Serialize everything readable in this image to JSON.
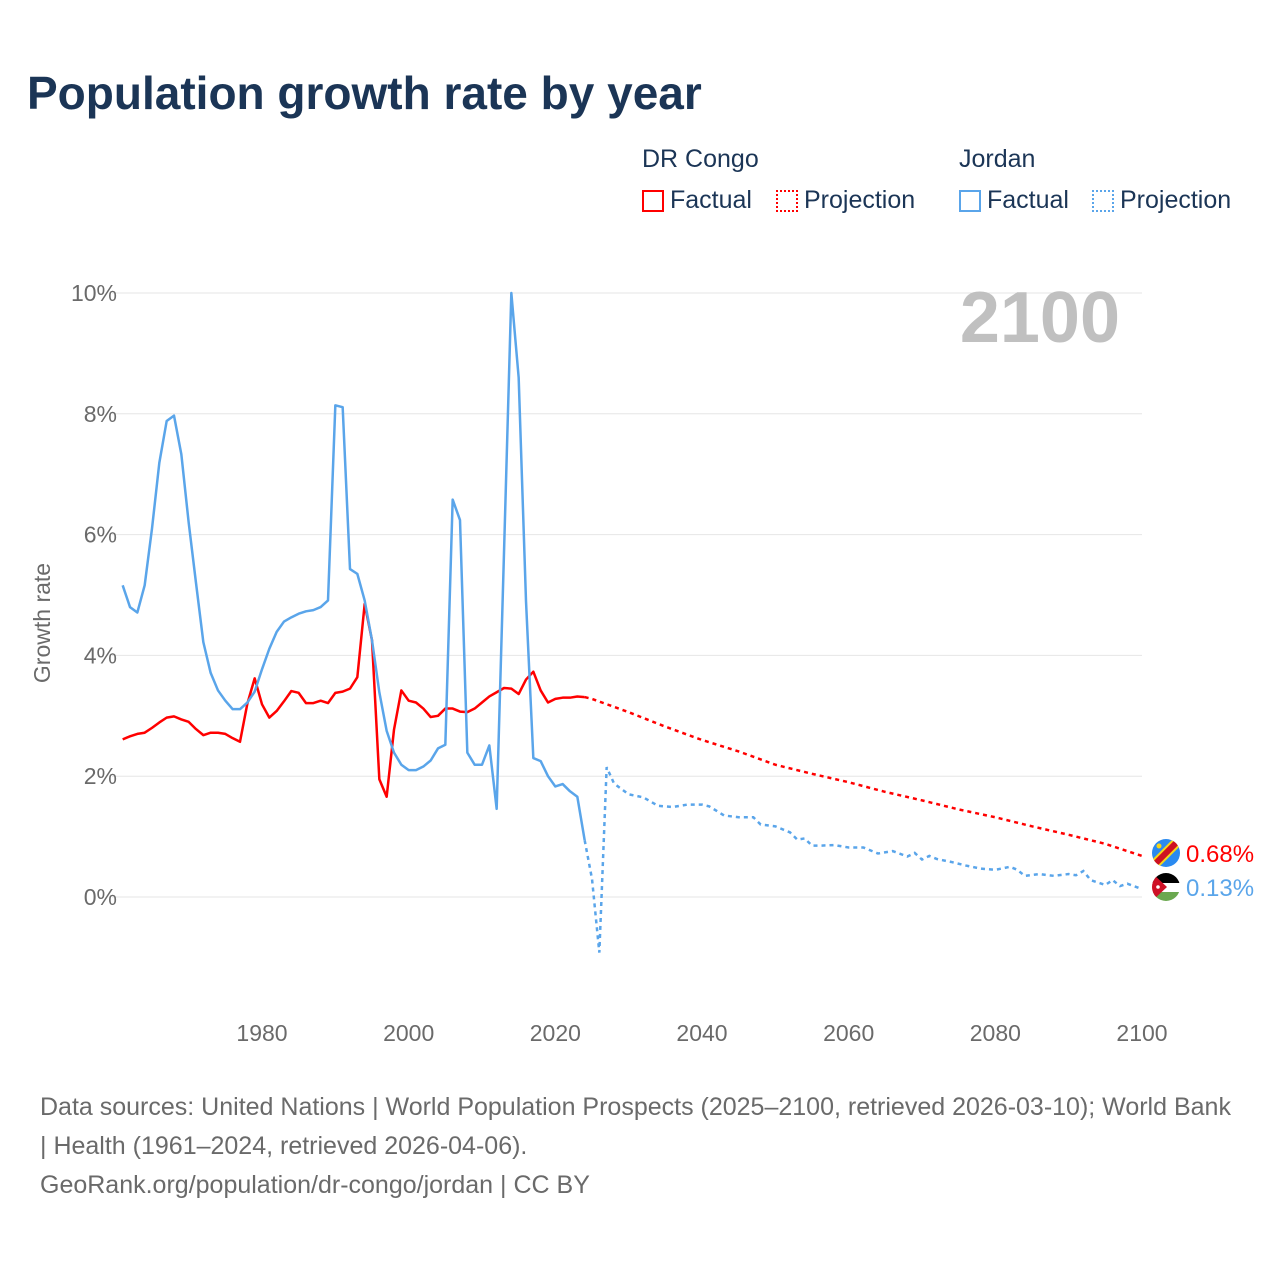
{
  "chart_data": {
    "type": "line",
    "title": "Population growth rate by year",
    "ylabel": "Growth rate",
    "xlabel": "",
    "xlim": [
      1961,
      2100
    ],
    "ylim": [
      -1.5,
      10.5
    ],
    "x_ticks": [
      1980,
      2000,
      2020,
      2040,
      2060,
      2080,
      2100
    ],
    "x_tick_labels": [
      "1980",
      "2000",
      "2020",
      "2040",
      "2060",
      "2080",
      "2100"
    ],
    "y_ticks": [
      0,
      2,
      4,
      6,
      8,
      10
    ],
    "y_tick_labels": [
      "0%",
      "2%",
      "4%",
      "6%",
      "8%",
      "10%"
    ],
    "grid": true,
    "year_watermark": "2100",
    "legend": {
      "placement": "top-right",
      "groups": [
        {
          "name": "DR Congo",
          "factual": "Factual",
          "projection": "Projection"
        },
        {
          "name": "Jordan",
          "factual": "Factual",
          "projection": "Projection"
        }
      ]
    },
    "series": [
      {
        "name": "DR Congo",
        "color": "#ff0000",
        "end_label": "0.68%",
        "flag": "dr-congo-flag",
        "factual": {
          "start_year": 1961,
          "values": [
            2.61,
            2.66,
            2.7,
            2.72,
            2.8,
            2.89,
            2.97,
            2.99,
            2.94,
            2.9,
            2.78,
            2.68,
            2.72,
            2.72,
            2.7,
            2.63,
            2.57,
            3.2,
            3.62,
            3.19,
            2.97,
            3.08,
            3.24,
            3.41,
            3.38,
            3.21,
            3.21,
            3.25,
            3.21,
            3.38,
            3.4,
            3.45,
            3.64,
            4.85,
            4.25,
            1.95,
            1.66,
            2.77,
            3.42,
            3.25,
            3.22,
            3.12,
            2.98,
            3.0,
            3.12,
            3.12,
            3.07,
            3.06,
            3.12,
            3.22,
            3.32,
            3.39,
            3.46,
            3.45,
            3.36,
            3.6,
            3.73,
            3.42,
            3.22,
            3.28,
            3.3,
            3.3,
            3.32,
            3.31
          ]
        },
        "projection": {
          "x": [
            2024,
            2025,
            2030,
            2035,
            2040,
            2045,
            2050,
            2055,
            2060,
            2065,
            2070,
            2075,
            2080,
            2085,
            2090,
            2095,
            2100
          ],
          "values": [
            3.31,
            3.28,
            3.06,
            2.82,
            2.6,
            2.41,
            2.19,
            2.04,
            1.9,
            1.74,
            1.6,
            1.45,
            1.32,
            1.17,
            1.03,
            0.88,
            0.68
          ]
        }
      },
      {
        "name": "Jordan",
        "color": "#5aa5ea",
        "end_label": "0.13%",
        "flag": "jordan-flag",
        "factual": {
          "start_year": 1961,
          "values": [
            5.16,
            4.8,
            4.71,
            5.16,
            6.1,
            7.19,
            7.88,
            7.97,
            7.33,
            6.2,
            5.2,
            4.22,
            3.71,
            3.42,
            3.25,
            3.11,
            3.11,
            3.22,
            3.4,
            3.77,
            4.11,
            4.39,
            4.56,
            4.63,
            4.69,
            4.73,
            4.75,
            4.8,
            4.91,
            8.14,
            8.11,
            5.43,
            5.35,
            4.91,
            4.25,
            3.39,
            2.75,
            2.39,
            2.19,
            2.1,
            2.1,
            2.16,
            2.26,
            2.46,
            2.52,
            6.58,
            6.24,
            2.39,
            2.19,
            2.19,
            2.51,
            1.46,
            5.7,
            10.0,
            8.6,
            4.9,
            2.3,
            2.25,
            2.0,
            1.83,
            1.87,
            1.75,
            1.66,
            0.94
          ]
        },
        "projection": {
          "x": [
            2024,
            2025,
            2026,
            2027,
            2028,
            2030,
            2032,
            2034,
            2036,
            2038,
            2040,
            2041,
            2043,
            2045,
            2047,
            2048,
            2050,
            2052,
            2053,
            2054,
            2055,
            2056,
            2058,
            2060,
            2062,
            2064,
            2066,
            2068,
            2069,
            2070,
            2071,
            2072,
            2074,
            2076,
            2078,
            2080,
            2082,
            2083,
            2084,
            2086,
            2088,
            2090,
            2091,
            2092,
            2093,
            2095,
            2096,
            2097,
            2098,
            2100
          ],
          "values": [
            0.94,
            0.3,
            -0.92,
            2.15,
            1.88,
            1.7,
            1.65,
            1.51,
            1.49,
            1.53,
            1.53,
            1.5,
            1.35,
            1.32,
            1.32,
            1.2,
            1.17,
            1.07,
            0.95,
            0.97,
            0.85,
            0.85,
            0.86,
            0.82,
            0.82,
            0.72,
            0.76,
            0.67,
            0.73,
            0.62,
            0.68,
            0.63,
            0.58,
            0.52,
            0.47,
            0.45,
            0.5,
            0.45,
            0.35,
            0.38,
            0.35,
            0.38,
            0.36,
            0.43,
            0.28,
            0.2,
            0.28,
            0.18,
            0.22,
            0.13
          ]
        }
      }
    ]
  },
  "footer": {
    "sources": "Data sources: United Nations | World Population Prospects (2025–2100, retrieved 2026-03-10); World Bank | Health (1961–2024, retrieved 2026-04-06).",
    "credit": "GeoRank.org/population/dr-congo/jordan | CC BY"
  }
}
